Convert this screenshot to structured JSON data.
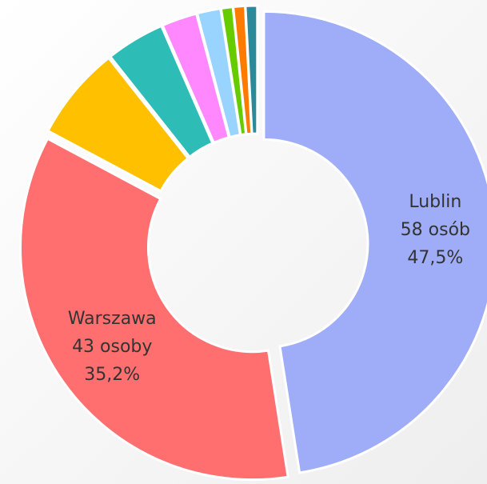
{
  "chart_data": {
    "type": "donut",
    "categories": [
      "Lublin",
      "Warszawa",
      null,
      null,
      null,
      null,
      null,
      null,
      null
    ],
    "values": [
      58,
      43,
      8,
      5,
      3,
      2,
      1,
      1,
      1
    ],
    "value_labels": [
      "58 osób",
      "43 osoby",
      null,
      null,
      null,
      null,
      null,
      null,
      null
    ],
    "percents": [
      47.5,
      35.2,
      null,
      null,
      null,
      null,
      null,
      null,
      null
    ],
    "percent_labels": [
      "47,5%",
      "35,2%",
      null,
      null,
      null,
      null,
      null,
      null,
      null
    ],
    "colors": [
      "#9fadf8",
      "#ff6f6f",
      "#ffc000",
      "#2dbdb6",
      "#ff88ff",
      "#99d3ff",
      "#66cc00",
      "#ff7a00",
      "#2a8a9a"
    ]
  }
}
